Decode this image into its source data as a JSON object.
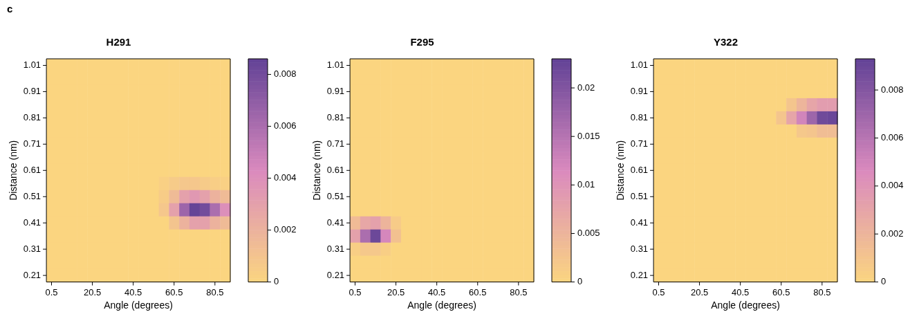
{
  "chart_data": [
    {
      "type": "heatmap",
      "title": "H291",
      "xlabel": "Angle (degrees)",
      "ylabel": "Distance (nm)",
      "annotations": [
        "c"
      ],
      "categories": [
        "0.5",
        null,
        null,
        null,
        "20.5",
        null,
        null,
        null,
        "40.5",
        null,
        null,
        null,
        "60.5",
        null,
        null,
        null,
        "80.5",
        null
      ],
      "y_categories": [
        "1.01",
        null,
        "0.91",
        null,
        "0.81",
        null,
        "0.71",
        null,
        "0.61",
        null,
        "0.51",
        null,
        "0.41",
        null,
        "0.31",
        null,
        "0.21"
      ],
      "clim": [
        0,
        0.0086
      ],
      "cticks": [
        0,
        0.002,
        0.004,
        0.006,
        0.008
      ],
      "cells": [
        [
          0,
          0,
          0,
          0,
          0,
          0,
          0,
          0,
          0,
          0,
          0,
          0,
          0,
          0,
          0,
          0,
          0,
          0
        ],
        [
          0,
          0,
          0,
          0,
          0,
          0,
          0,
          0,
          0,
          0,
          0,
          0,
          0,
          0,
          0,
          0,
          0,
          0
        ],
        [
          0,
          0,
          0,
          0,
          0,
          0,
          0,
          0,
          0,
          0,
          0,
          0,
          0,
          0,
          0,
          0,
          0,
          0
        ],
        [
          0,
          0,
          0,
          0,
          0,
          0,
          0,
          0,
          0,
          0,
          0,
          0,
          0,
          0,
          0,
          0,
          0,
          0
        ],
        [
          0,
          0,
          0,
          0,
          0,
          0,
          0,
          0,
          0,
          0,
          0,
          0,
          0,
          0,
          0,
          0,
          0,
          0
        ],
        [
          0,
          0,
          0,
          0,
          0,
          0,
          0,
          0,
          0,
          0,
          0,
          0,
          0,
          0,
          0,
          0,
          0,
          0
        ],
        [
          0,
          0,
          0,
          0,
          0,
          0,
          0,
          0,
          0,
          0,
          0,
          0,
          0,
          0,
          0,
          0,
          0,
          0
        ],
        [
          0,
          0,
          0,
          0,
          0,
          0,
          0,
          0,
          0,
          0,
          0,
          0,
          0,
          0,
          0,
          0,
          0,
          0
        ],
        [
          0,
          0,
          0,
          0,
          0,
          0,
          0,
          0,
          0,
          0,
          0,
          0,
          0,
          0,
          0,
          0,
          0,
          0
        ],
        [
          0,
          0,
          0,
          0,
          0,
          0,
          0,
          0,
          0,
          0,
          0,
          0.0003,
          0.0006,
          0.0008,
          0.0008,
          0.0006,
          0.0004,
          0.0003
        ],
        [
          0,
          0,
          0,
          0,
          0,
          0,
          0,
          0,
          0,
          0,
          0,
          0.0005,
          0.0015,
          0.003,
          0.0035,
          0.003,
          0.002,
          0.0015
        ],
        [
          0,
          0,
          0,
          0,
          0,
          0,
          0,
          0,
          0,
          0,
          0,
          0.0008,
          0.003,
          0.0065,
          0.0085,
          0.008,
          0.006,
          0.004
        ],
        [
          0,
          0,
          0,
          0,
          0,
          0,
          0,
          0,
          0,
          0,
          0,
          0,
          0.001,
          0.002,
          0.003,
          0.003,
          0.002,
          0.0015
        ],
        [
          0,
          0,
          0,
          0,
          0,
          0,
          0,
          0,
          0,
          0,
          0,
          0,
          0,
          0,
          0,
          0,
          0,
          0
        ],
        [
          0,
          0,
          0,
          0,
          0,
          0,
          0,
          0,
          0,
          0,
          0,
          0,
          0,
          0,
          0,
          0,
          0,
          0
        ],
        [
          0,
          0,
          0,
          0,
          0,
          0,
          0,
          0,
          0,
          0,
          0,
          0,
          0,
          0,
          0,
          0,
          0,
          0
        ],
        [
          0,
          0,
          0,
          0,
          0,
          0,
          0,
          0,
          0,
          0,
          0,
          0,
          0,
          0,
          0,
          0,
          0,
          0
        ]
      ]
    },
    {
      "type": "heatmap",
      "title": "F295",
      "xlabel": "Angle (degrees)",
      "ylabel": "Distance (nm)",
      "categories": [
        "0.5",
        null,
        null,
        null,
        "20.5",
        null,
        null,
        null,
        "40.5",
        null,
        null,
        null,
        "60.5",
        null,
        null,
        null,
        "80.5",
        null
      ],
      "y_categories": [
        "1.01",
        null,
        "0.91",
        null,
        "0.81",
        null,
        "0.71",
        null,
        "0.61",
        null,
        "0.51",
        null,
        "0.41",
        null,
        "0.31",
        null,
        "0.21"
      ],
      "clim": [
        0,
        0.023
      ],
      "cticks": [
        0,
        0.005,
        0.01,
        0.015,
        0.02
      ],
      "cells": [
        [
          0,
          0,
          0,
          0,
          0,
          0,
          0,
          0,
          0,
          0,
          0,
          0,
          0,
          0,
          0,
          0,
          0,
          0
        ],
        [
          0,
          0,
          0,
          0,
          0,
          0,
          0,
          0,
          0,
          0,
          0,
          0,
          0,
          0,
          0,
          0,
          0,
          0
        ],
        [
          0,
          0,
          0,
          0,
          0,
          0,
          0,
          0,
          0,
          0,
          0,
          0,
          0,
          0,
          0,
          0,
          0,
          0
        ],
        [
          0,
          0,
          0,
          0,
          0,
          0,
          0,
          0,
          0,
          0,
          0,
          0,
          0,
          0,
          0,
          0,
          0,
          0
        ],
        [
          0,
          0,
          0,
          0,
          0,
          0,
          0,
          0,
          0,
          0,
          0,
          0,
          0,
          0,
          0,
          0,
          0,
          0
        ],
        [
          0,
          0,
          0,
          0,
          0,
          0,
          0,
          0,
          0,
          0,
          0,
          0,
          0,
          0,
          0,
          0,
          0,
          0
        ],
        [
          0,
          0,
          0,
          0,
          0,
          0,
          0,
          0,
          0,
          0,
          0,
          0,
          0,
          0,
          0,
          0,
          0,
          0
        ],
        [
          0,
          0,
          0,
          0,
          0,
          0,
          0,
          0,
          0,
          0,
          0,
          0,
          0,
          0,
          0,
          0,
          0,
          0
        ],
        [
          0,
          0,
          0,
          0,
          0,
          0,
          0,
          0,
          0,
          0,
          0,
          0,
          0,
          0,
          0,
          0,
          0,
          0
        ],
        [
          0,
          0,
          0,
          0,
          0,
          0,
          0,
          0,
          0,
          0,
          0,
          0,
          0,
          0,
          0,
          0,
          0,
          0
        ],
        [
          0,
          0,
          0,
          0,
          0,
          0,
          0,
          0,
          0,
          0,
          0,
          0,
          0,
          0,
          0,
          0,
          0,
          0
        ],
        [
          0,
          0,
          0,
          0,
          0,
          0,
          0,
          0,
          0,
          0,
          0,
          0,
          0,
          0,
          0,
          0,
          0,
          0
        ],
        [
          0.004,
          0.007,
          0.008,
          0.005,
          0.0015,
          0,
          0,
          0,
          0,
          0,
          0,
          0,
          0,
          0,
          0,
          0,
          0,
          0
        ],
        [
          0.008,
          0.016,
          0.022,
          0.012,
          0.003,
          0,
          0,
          0,
          0,
          0,
          0,
          0,
          0,
          0,
          0,
          0,
          0,
          0
        ],
        [
          0.001,
          0.002,
          0.002,
          0.001,
          0,
          0,
          0,
          0,
          0,
          0,
          0,
          0,
          0,
          0,
          0,
          0,
          0,
          0
        ],
        [
          0,
          0,
          0,
          0,
          0,
          0,
          0,
          0,
          0,
          0,
          0,
          0,
          0,
          0,
          0,
          0,
          0,
          0
        ],
        [
          0,
          0,
          0,
          0,
          0,
          0,
          0,
          0,
          0,
          0,
          0,
          0,
          0,
          0,
          0,
          0,
          0,
          0
        ]
      ]
    },
    {
      "type": "heatmap",
      "title": "Y322",
      "xlabel": "Angle (degrees)",
      "ylabel": "Distance (nm)",
      "categories": [
        "0.5",
        null,
        null,
        null,
        "20.5",
        null,
        null,
        null,
        "40.5",
        null,
        null,
        null,
        "60.5",
        null,
        null,
        null,
        "80.5",
        null
      ],
      "y_categories": [
        "1.01",
        null,
        "0.91",
        null,
        "0.81",
        null,
        "0.71",
        null,
        "0.61",
        null,
        "0.51",
        null,
        "0.41",
        null,
        "0.31",
        null,
        "0.21"
      ],
      "clim": [
        0,
        0.0093
      ],
      "cticks": [
        0,
        0.002,
        0.004,
        0.006,
        0.008
      ],
      "cells": [
        [
          0,
          0,
          0,
          0,
          0,
          0,
          0,
          0,
          0,
          0,
          0,
          0,
          0,
          0,
          0,
          0,
          0,
          0
        ],
        [
          0,
          0,
          0,
          0,
          0,
          0,
          0,
          0,
          0,
          0,
          0,
          0,
          0,
          0,
          0,
          0,
          0,
          0
        ],
        [
          0,
          0,
          0,
          0,
          0,
          0,
          0,
          0,
          0,
          0,
          0,
          0,
          0,
          0,
          0,
          0,
          0,
          0
        ],
        [
          0,
          0,
          0,
          0,
          0,
          0,
          0,
          0,
          0,
          0,
          0,
          0,
          0,
          0.001,
          0.002,
          0.003,
          0.0035,
          0.0035
        ],
        [
          0,
          0,
          0,
          0,
          0,
          0,
          0,
          0,
          0,
          0,
          0,
          0,
          0.001,
          0.003,
          0.005,
          0.007,
          0.0088,
          0.009
        ],
        [
          0,
          0,
          0,
          0,
          0,
          0,
          0,
          0,
          0,
          0,
          0,
          0,
          0,
          0,
          0.0008,
          0.001,
          0.0015,
          0.0015
        ],
        [
          0,
          0,
          0,
          0,
          0,
          0,
          0,
          0,
          0,
          0,
          0,
          0,
          0,
          0,
          0,
          0,
          0,
          0
        ],
        [
          0,
          0,
          0,
          0,
          0,
          0,
          0,
          0,
          0,
          0,
          0,
          0,
          0,
          0,
          0,
          0,
          0,
          0
        ],
        [
          0,
          0,
          0,
          0,
          0,
          0,
          0,
          0,
          0,
          0,
          0,
          0,
          0,
          0,
          0,
          0,
          0,
          0
        ],
        [
          0,
          0,
          0,
          0,
          0,
          0,
          0,
          0,
          0,
          0,
          0,
          0,
          0,
          0,
          0,
          0,
          0,
          0
        ],
        [
          0,
          0,
          0,
          0,
          0,
          0,
          0,
          0,
          0,
          0,
          0,
          0,
          0,
          0,
          0,
          0,
          0,
          0
        ],
        [
          0,
          0,
          0,
          0,
          0,
          0,
          0,
          0,
          0,
          0,
          0,
          0,
          0,
          0,
          0,
          0,
          0,
          0
        ],
        [
          0,
          0,
          0,
          0,
          0,
          0,
          0,
          0,
          0,
          0,
          0,
          0,
          0,
          0,
          0,
          0,
          0,
          0
        ],
        [
          0,
          0,
          0,
          0,
          0,
          0,
          0,
          0,
          0,
          0,
          0,
          0,
          0,
          0,
          0,
          0,
          0,
          0
        ],
        [
          0,
          0,
          0,
          0,
          0,
          0,
          0,
          0,
          0,
          0,
          0,
          0,
          0,
          0,
          0,
          0,
          0,
          0
        ],
        [
          0,
          0,
          0,
          0,
          0,
          0,
          0,
          0,
          0,
          0,
          0,
          0,
          0,
          0,
          0,
          0,
          0,
          0
        ],
        [
          0,
          0,
          0,
          0,
          0,
          0,
          0,
          0,
          0,
          0,
          0,
          0,
          0,
          0,
          0,
          0,
          0,
          0
        ]
      ]
    }
  ]
}
